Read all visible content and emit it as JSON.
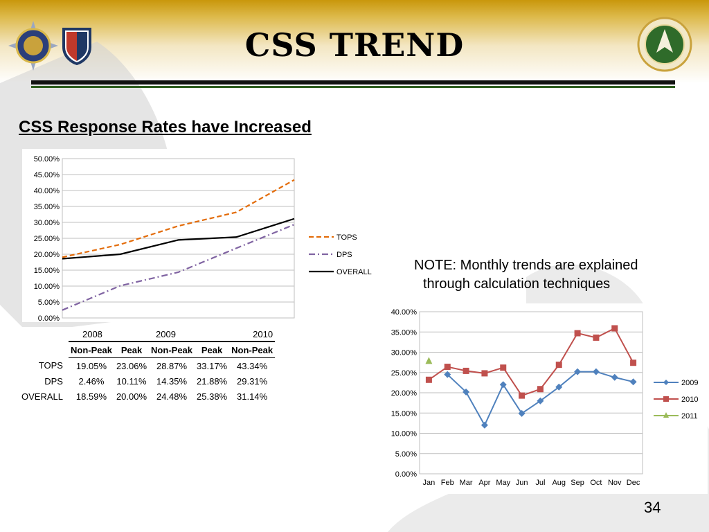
{
  "slide": {
    "title": "CSS TREND",
    "subtitle": "CSS Response Rates have Increased",
    "note_line1": "NOTE: Monthly trends are explained",
    "note_line2": "through calculation techniques",
    "page_number": "34"
  },
  "table": {
    "years": [
      "2008",
      "2009",
      "2010"
    ],
    "headers": [
      "Non-Peak",
      "Peak",
      "Non-Peak",
      "Peak",
      "Non-Peak"
    ],
    "rows": [
      {
        "label": "TOPS",
        "cells": [
          "19.05%",
          "23.06%",
          "28.87%",
          "33.17%",
          "43.34%"
        ]
      },
      {
        "label": "DPS",
        "cells": [
          "2.46%",
          "10.11%",
          "14.35%",
          "21.88%",
          "29.31%"
        ]
      },
      {
        "label": "OVERALL",
        "cells": [
          "18.59%",
          "20.00%",
          "24.48%",
          "25.38%",
          "31.14%"
        ]
      }
    ]
  },
  "chart_data": [
    {
      "type": "line",
      "title": "",
      "xlabel": "",
      "ylabel": "",
      "ylim": [
        0,
        50
      ],
      "yticks": [
        "0.00%",
        "5.00%",
        "10.00%",
        "15.00%",
        "20.00%",
        "25.00%",
        "30.00%",
        "35.00%",
        "40.00%",
        "45.00%",
        "50.00%"
      ],
      "categories": [
        "Non-Peak 2008",
        "Peak 2008",
        "Non-Peak 2009",
        "Peak 2009",
        "Non-Peak 2010"
      ],
      "grid": true,
      "legend": "right",
      "series": [
        {
          "name": "TOPS",
          "values": [
            19.05,
            23.06,
            28.87,
            33.17,
            43.34
          ],
          "color": "#e36c0a",
          "style": "dashed"
        },
        {
          "name": "DPS",
          "values": [
            2.46,
            10.11,
            14.35,
            21.88,
            29.31
          ],
          "color": "#8064a2",
          "style": "dashdot"
        },
        {
          "name": "OVERALL",
          "values": [
            18.59,
            20.0,
            24.48,
            25.38,
            31.14
          ],
          "color": "#000000",
          "style": "solid"
        }
      ]
    },
    {
      "type": "line",
      "title": "",
      "xlabel": "",
      "ylabel": "",
      "ylim": [
        0,
        40
      ],
      "yticks": [
        "0.00%",
        "5.00%",
        "10.00%",
        "15.00%",
        "20.00%",
        "25.00%",
        "30.00%",
        "35.00%",
        "40.00%"
      ],
      "categories": [
        "Jan",
        "Feb",
        "Mar",
        "Apr",
        "May",
        "Jun",
        "Jul",
        "Aug",
        "Sep",
        "Oct",
        "Nov",
        "Dec"
      ],
      "grid": true,
      "legend": "right",
      "series": [
        {
          "name": "2009",
          "values": [
            null,
            24.5,
            20.2,
            12.0,
            22.0,
            14.9,
            18.0,
            21.4,
            25.2,
            25.2,
            23.8,
            22.7
          ],
          "color": "#4f81bd",
          "marker": "diamond"
        },
        {
          "name": "2010",
          "values": [
            23.2,
            26.4,
            25.4,
            24.8,
            26.2,
            19.3,
            20.9,
            26.9,
            34.7,
            33.6,
            35.9,
            27.4
          ],
          "color": "#c0504d",
          "marker": "square"
        },
        {
          "name": "2011",
          "values": [
            27.8,
            null,
            null,
            null,
            null,
            null,
            null,
            null,
            null,
            null,
            null,
            null
          ],
          "color": "#9bbb59",
          "marker": "triangle"
        }
      ]
    }
  ]
}
